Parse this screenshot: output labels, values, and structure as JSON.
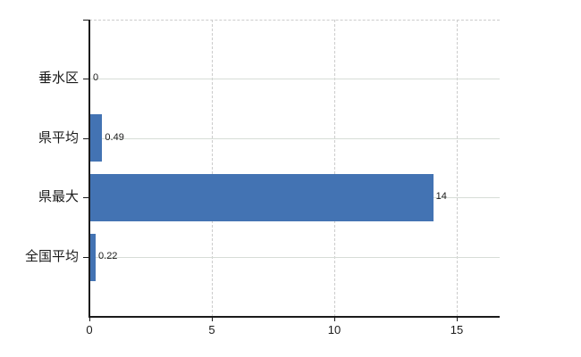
{
  "chart_data": {
    "type": "bar",
    "orientation": "horizontal",
    "title": "",
    "xlabel": "",
    "ylabel": "",
    "categories": [
      "垂水区",
      "県平均",
      "県最大",
      "全国平均"
    ],
    "values": [
      0,
      0.49,
      14,
      0.22
    ],
    "value_labels": [
      "0",
      "0.49",
      "14",
      "0.22"
    ],
    "x_ticks": [
      0,
      5,
      10,
      15
    ],
    "x_tick_labels": [
      "0",
      "5",
      "10",
      "15"
    ],
    "xlim": [
      0,
      16.8
    ],
    "grid": {
      "vertical": "dashed",
      "horizontal": "solid",
      "top_border": "dashed"
    },
    "legend": null,
    "colors": {
      "bar": "#4373B3",
      "axis": "#1a1a1a",
      "h_gridline": "#d7ddd7",
      "v_gridline": "#cccccc",
      "text": "#1a1a1a",
      "background": "#ffffff"
    }
  }
}
